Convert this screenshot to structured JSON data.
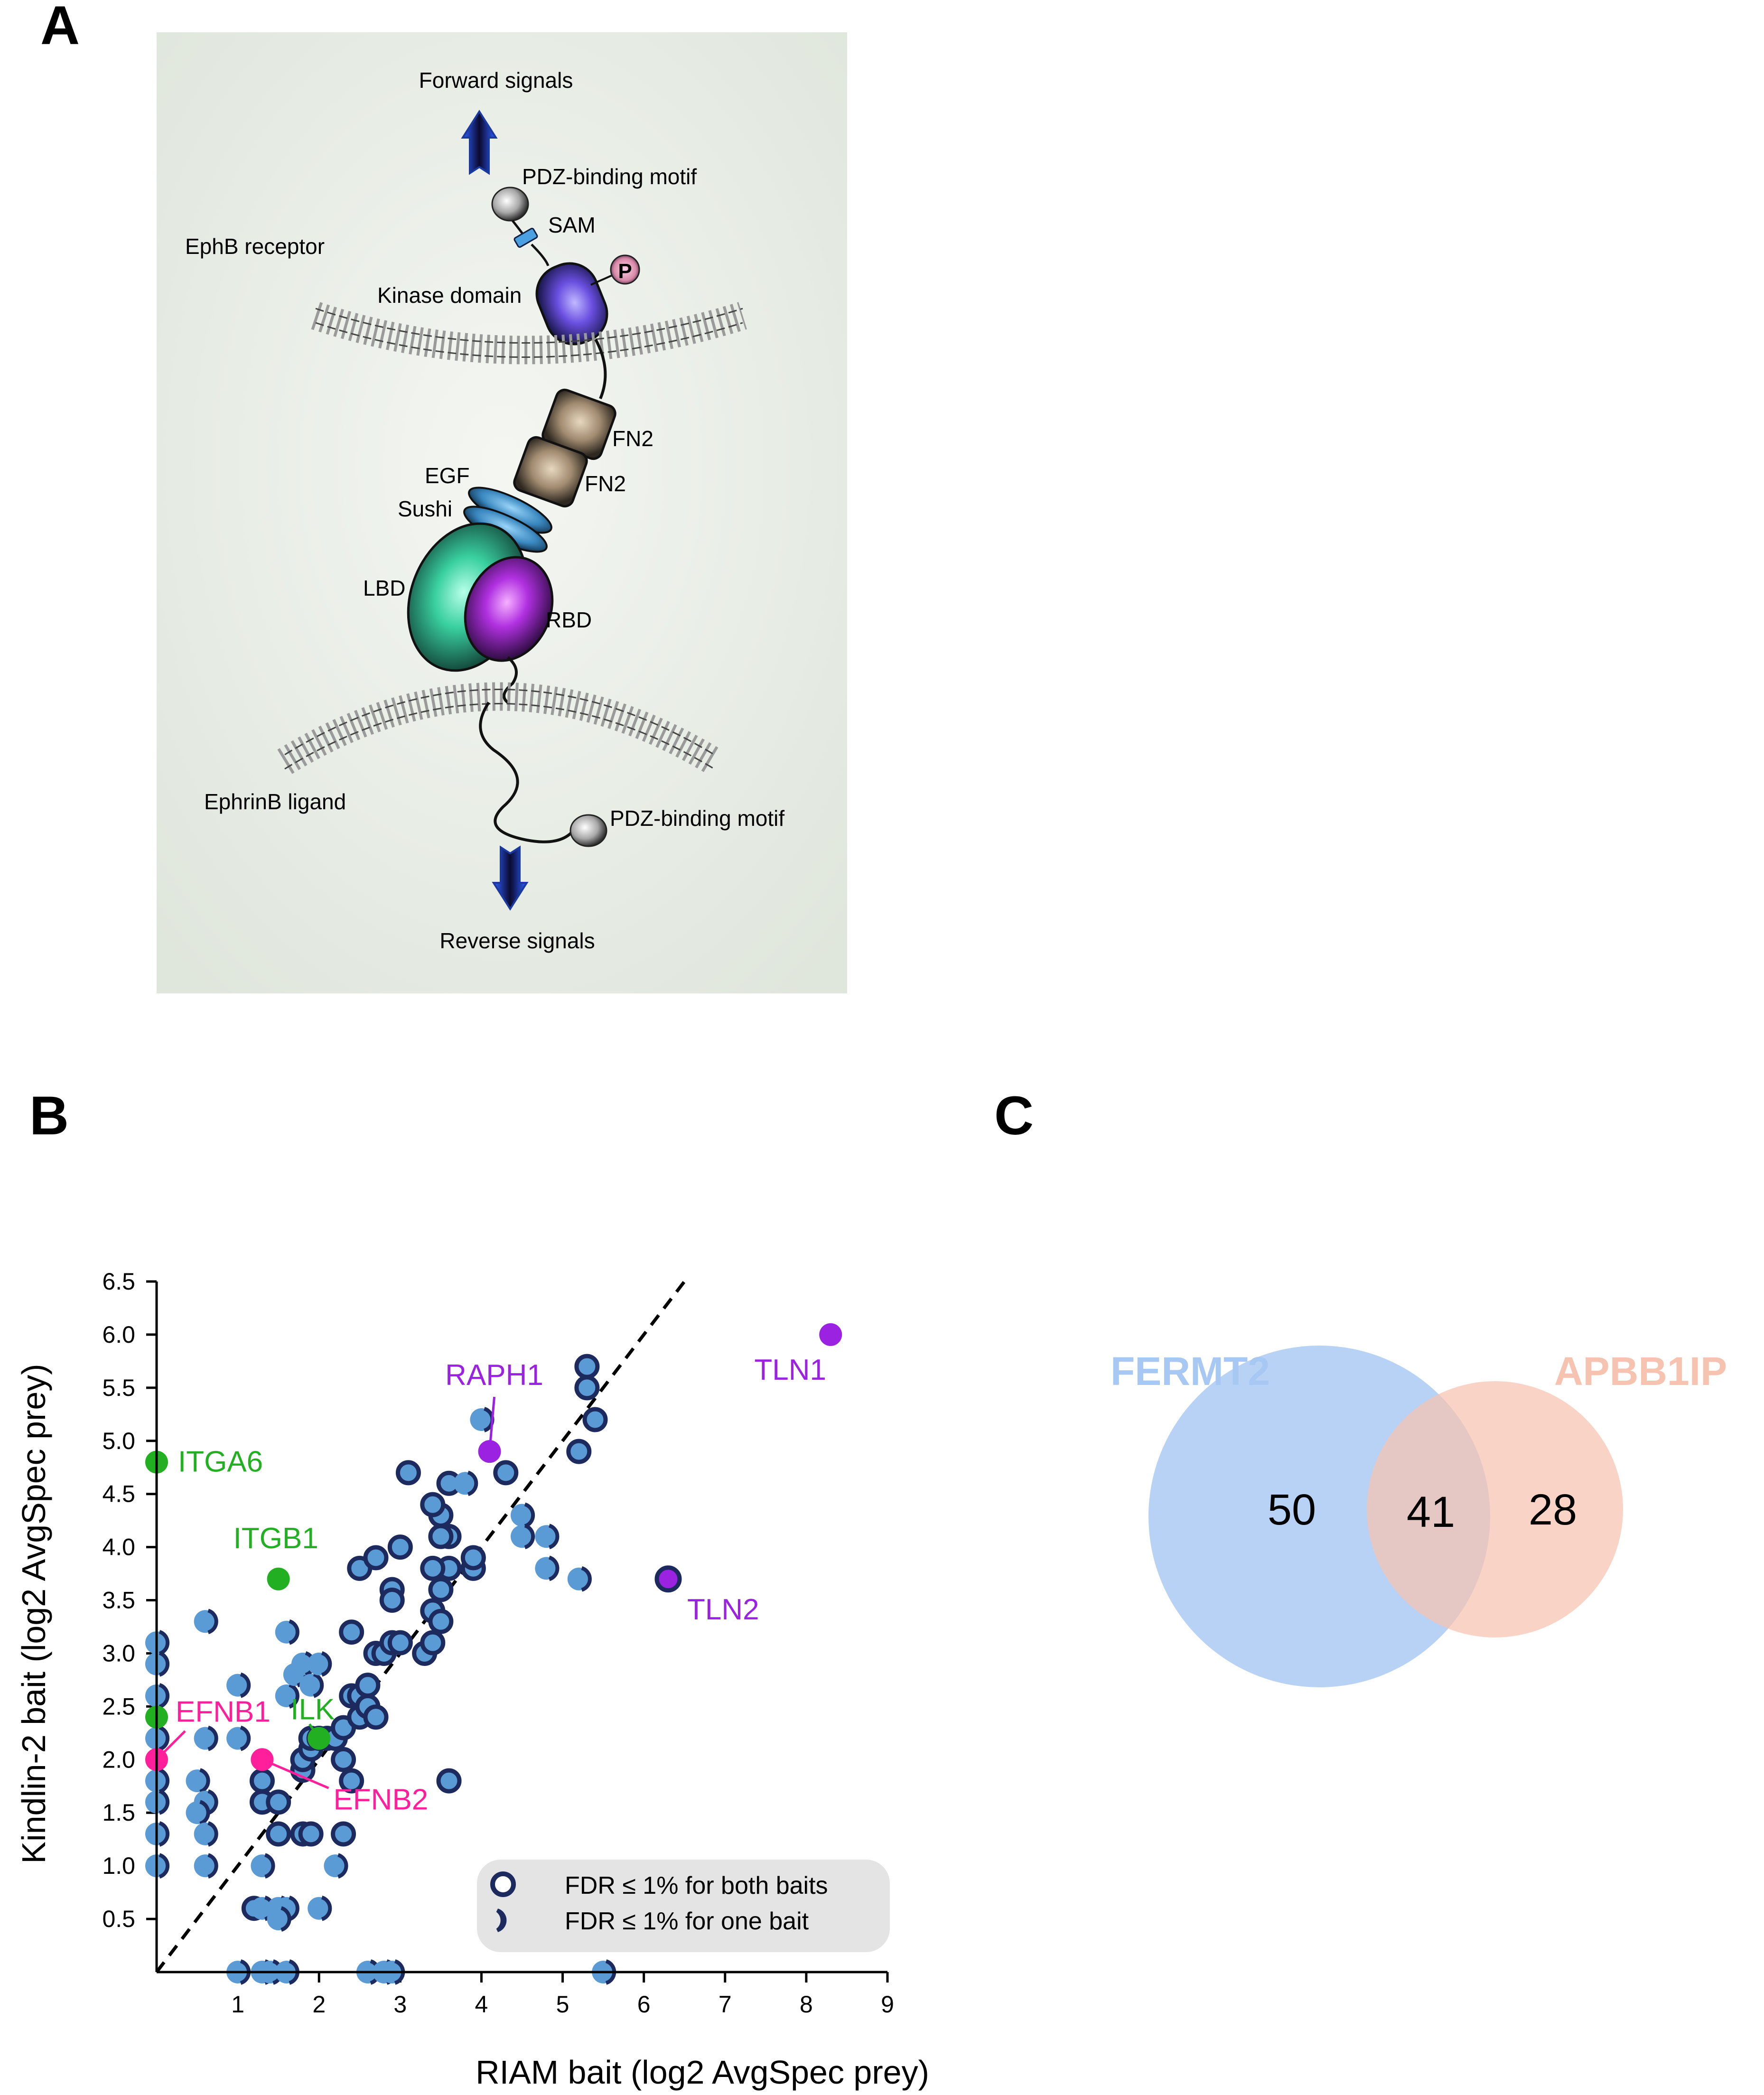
{
  "panels": {
    "a": "A",
    "b": "B",
    "c": "C"
  },
  "panel_a": {
    "forward_signals": "Forward signals",
    "reverse_signals": "Reverse signals",
    "pdz_top": "PDZ-binding motif",
    "pdz_bottom": "PDZ-binding motif",
    "sam": "SAM",
    "ephb_receptor": "EphB receptor",
    "kinase_domain": "Kinase domain",
    "phospho": "P",
    "fn2_upper": "FN2",
    "fn2_lower": "FN2",
    "egf": "EGF",
    "sushi": "Sushi",
    "lbd": "LBD",
    "rbd": "RBD",
    "ephrinb_ligand": "EphrinB ligand"
  },
  "chart_data": [
    {
      "type": "scatter",
      "xlabel": "RIAM bait (log2 AvgSpec prey)",
      "ylabel": "Kindlin-2 bait (log2 AvgSpec prey)",
      "xlim": [
        0,
        9
      ],
      "ylim": [
        0,
        6.5
      ],
      "x_ticks": [
        "1",
        "2",
        "3",
        "4",
        "5",
        "6",
        "7",
        "8",
        "9"
      ],
      "y_ticks": [
        "0.5",
        "1.0",
        "1.5",
        "2.0",
        "2.5",
        "3.0",
        "3.5",
        "4.0",
        "4.5",
        "5.0",
        "5.5",
        "6.0",
        "6.5"
      ],
      "diagonal": "y = x (dashed)",
      "legend": {
        "placement": "bottom-right",
        "both": "FDR ≤ 1% for both baits",
        "one": "FDR ≤ 1% for one bait"
      },
      "colors": {
        "point": "#5b9bd5",
        "ring": "#1c2a5e",
        "green": "#22b022",
        "magenta": "#ff1f9a",
        "purple": "#9a22e0"
      },
      "points_both": [
        [
          1.3,
          1.8
        ],
        [
          1.3,
          1.6
        ],
        [
          1.5,
          1.3
        ],
        [
          1.5,
          1.6
        ],
        [
          1.8,
          1.3
        ],
        [
          1.9,
          1.3
        ],
        [
          2.3,
          1.3
        ],
        [
          1.8,
          1.9
        ],
        [
          1.8,
          2.0
        ],
        [
          1.9,
          2.1
        ],
        [
          1.9,
          2.2
        ],
        [
          2.0,
          2.2
        ],
        [
          2.1,
          2.2
        ],
        [
          2.2,
          2.2
        ],
        [
          2.3,
          2.3
        ],
        [
          2.4,
          1.8
        ],
        [
          2.4,
          2.6
        ],
        [
          2.5,
          2.6
        ],
        [
          2.5,
          2.4
        ],
        [
          2.6,
          2.5
        ],
        [
          2.7,
          2.4
        ],
        [
          2.6,
          2.7
        ],
        [
          2.7,
          3.0
        ],
        [
          2.4,
          3.2
        ],
        [
          2.8,
          3.0
        ],
        [
          2.5,
          3.8
        ],
        [
          2.7,
          3.9
        ],
        [
          2.9,
          3.6
        ],
        [
          2.9,
          3.5
        ],
        [
          2.9,
          3.1
        ],
        [
          3.0,
          3.1
        ],
        [
          3.3,
          3.0
        ],
        [
          3.4,
          3.1
        ],
        [
          3.4,
          3.4
        ],
        [
          3.5,
          3.6
        ],
        [
          3.5,
          3.3
        ],
        [
          3.6,
          3.8
        ],
        [
          3.6,
          4.1
        ],
        [
          3.4,
          3.8
        ],
        [
          3.5,
          4.1
        ],
        [
          3.5,
          4.3
        ],
        [
          3.4,
          4.4
        ],
        [
          3.6,
          4.6
        ],
        [
          3.1,
          4.7
        ],
        [
          3.9,
          3.8
        ],
        [
          3.9,
          3.9
        ],
        [
          4.3,
          4.7
        ],
        [
          5.2,
          4.9
        ],
        [
          5.3,
          5.5
        ],
        [
          5.3,
          5.7
        ],
        [
          5.4,
          5.2
        ],
        [
          3.6,
          1.8
        ],
        [
          1.2,
          0.6
        ],
        [
          2.3,
          2.0
        ],
        [
          3.0,
          4.0
        ]
      ],
      "points_one": [
        [
          0,
          3.1
        ],
        [
          0,
          2.9
        ],
        [
          0,
          2.6
        ],
        [
          0,
          2.2
        ],
        [
          0,
          1.8
        ],
        [
          0,
          1.6
        ],
        [
          0,
          1.3
        ],
        [
          0,
          1.0
        ],
        [
          0.6,
          3.3
        ],
        [
          1.0,
          2.7
        ],
        [
          0.6,
          2.2
        ],
        [
          0.5,
          1.8
        ],
        [
          0.6,
          1.6
        ],
        [
          0.5,
          1.5
        ],
        [
          0.6,
          1.3
        ],
        [
          0.6,
          1.0
        ],
        [
          1.0,
          2.2
        ],
        [
          1.6,
          3.2
        ],
        [
          1.6,
          2.6
        ],
        [
          1.7,
          2.8
        ],
        [
          1.8,
          2.9
        ],
        [
          1.9,
          2.7
        ],
        [
          2.0,
          2.9
        ],
        [
          1.3,
          1.0
        ],
        [
          1.3,
          0.6
        ],
        [
          1.5,
          0.6
        ],
        [
          1.6,
          0.6
        ],
        [
          1.5,
          0.5
        ],
        [
          2.0,
          0.6
        ],
        [
          2.2,
          1.0
        ],
        [
          1.0,
          0.0
        ],
        [
          1.3,
          0.0
        ],
        [
          1.4,
          0.0
        ],
        [
          1.6,
          0.0
        ],
        [
          2.6,
          0.0
        ],
        [
          2.8,
          0.0
        ],
        [
          2.9,
          0.0
        ],
        [
          5.5,
          0.0
        ],
        [
          4.0,
          5.2
        ],
        [
          4.5,
          4.3
        ],
        [
          4.5,
          4.1
        ],
        [
          4.8,
          3.8
        ],
        [
          4.8,
          4.1
        ],
        [
          5.2,
          3.7
        ],
        [
          3.8,
          4.6
        ]
      ],
      "highlighted": [
        {
          "label": "TLN1",
          "x": 8.3,
          "y": 6.0,
          "color": "purple",
          "ring": false
        },
        {
          "label": "TLN2",
          "x": 6.3,
          "y": 3.7,
          "color": "purple",
          "ring": true
        },
        {
          "label": "RAPH1",
          "x": 4.1,
          "y": 4.9,
          "color": "purple",
          "ring": false
        },
        {
          "label": "ITGA6",
          "x": 0.0,
          "y": 4.8,
          "color": "green",
          "ring": false
        },
        {
          "label": "ITGB1",
          "x": 1.5,
          "y": 3.7,
          "color": "green",
          "ring": false
        },
        {
          "label": "ILK",
          "x": 2.0,
          "y": 2.2,
          "color": "green",
          "ring": false
        },
        {
          "label": "",
          "x": 0.0,
          "y": 2.4,
          "color": "green",
          "ring": false
        },
        {
          "label": "EFNB1",
          "x": 0.0,
          "y": 2.0,
          "color": "magenta",
          "ring": false
        },
        {
          "label": "EFNB2",
          "x": 1.3,
          "y": 2.0,
          "color": "magenta",
          "ring": false
        }
      ]
    },
    {
      "type": "venn",
      "sets": [
        {
          "name": "FERMT2",
          "only": 50,
          "color": "#a8c8f4"
        },
        {
          "name": "APBB1IP",
          "only": 28,
          "color": "#f6c3b0"
        }
      ],
      "intersection": 41
    }
  ]
}
